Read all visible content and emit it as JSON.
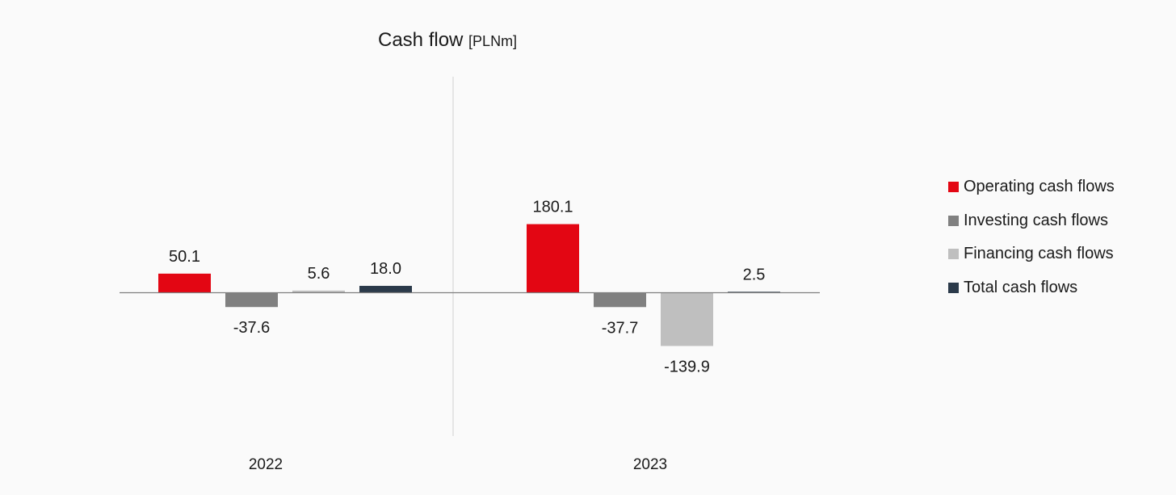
{
  "title": "Cash flow",
  "title_unit": "[PLNm]",
  "chart_data": {
    "type": "bar",
    "categories": [
      "2022",
      "2023"
    ],
    "series": [
      {
        "name": "Operating cash flows",
        "color": "#e30613",
        "values": [
          50.1,
          180.1
        ],
        "labels": [
          "50.1",
          "180.1"
        ]
      },
      {
        "name": "Investing cash flows",
        "color": "#808080",
        "values": [
          -37.6,
          -37.7
        ],
        "labels": [
          "-37.6",
          "-37.7"
        ]
      },
      {
        "name": "Financing cash flows",
        "color": "#bfbfbf",
        "values": [
          5.6,
          -139.9
        ],
        "labels": [
          "5.6",
          "-139.9"
        ]
      },
      {
        "name": "Total cash flows",
        "color": "#2b3a4a",
        "values": [
          18.0,
          2.5
        ],
        "labels": [
          "18.0",
          "2.5"
        ]
      }
    ],
    "grid": false,
    "legend_position": "right",
    "divider_between_categories": true
  }
}
